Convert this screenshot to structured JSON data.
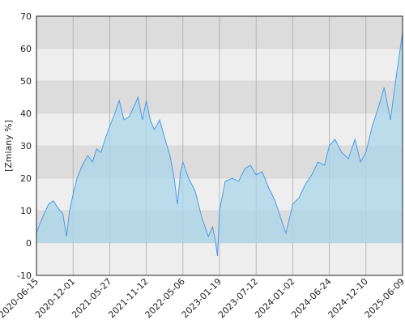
{
  "chart_data": {
    "type": "area",
    "y_label": "[Zmiany %]",
    "x": [
      "2020-06-15",
      "2020-07-01",
      "2020-07-20",
      "2020-08-10",
      "2020-09-01",
      "2020-09-20",
      "2020-10-15",
      "2020-11-01",
      "2020-11-15",
      "2020-12-01",
      "2020-12-20",
      "2021-01-15",
      "2021-02-10",
      "2021-03-05",
      "2021-03-25",
      "2021-04-15",
      "2021-05-10",
      "2021-05-27",
      "2021-06-20",
      "2021-07-10",
      "2021-08-01",
      "2021-08-25",
      "2021-09-15",
      "2021-10-05",
      "2021-10-25",
      "2021-11-12",
      "2021-12-01",
      "2021-12-20",
      "2022-01-15",
      "2022-02-10",
      "2022-03-05",
      "2022-03-25",
      "2022-04-10",
      "2022-04-25",
      "2022-05-06",
      "2022-06-15",
      "2022-08-01",
      "2022-09-15",
      "2022-11-01",
      "2022-12-01",
      "2022-12-20",
      "2023-01-05",
      "2023-01-19",
      "2023-02-15",
      "2023-03-20",
      "2023-04-20",
      "2023-05-20",
      "2023-06-15",
      "2023-07-12",
      "2023-08-10",
      "2023-09-10",
      "2023-10-10",
      "2023-11-10",
      "2023-12-01",
      "2024-01-02",
      "2024-02-01",
      "2024-03-01",
      "2024-04-01",
      "2024-05-01",
      "2024-06-01",
      "2024-06-24",
      "2024-07-20",
      "2024-08-20",
      "2024-09-20",
      "2024-10-20",
      "2024-11-15",
      "2024-12-10",
      "2025-01-10",
      "2025-02-10",
      "2025-03-10",
      "2025-04-10",
      "2025-05-10",
      "2025-06-09"
    ],
    "series": [
      {
        "name": "Zmiany",
        "color": "#4a9be8",
        "fill": "#a9d7ea",
        "values": [
          3,
          6,
          9,
          12,
          13,
          11,
          9,
          2,
          10,
          15,
          20,
          24,
          27,
          25,
          29,
          28,
          33,
          36,
          40,
          44,
          38,
          39,
          42,
          45,
          38,
          44,
          38,
          35,
          38,
          32,
          27,
          20,
          12,
          22,
          25,
          20,
          16,
          8,
          2,
          5,
          1,
          -4,
          10,
          19,
          20,
          19,
          23,
          24,
          21,
          22,
          17,
          13,
          7,
          3,
          12,
          14,
          18,
          21,
          25,
          24,
          30,
          32,
          28,
          26,
          32,
          25,
          28,
          36,
          42,
          48,
          38,
          52,
          65
        ]
      }
    ],
    "xlim": [
      "2020-06-15",
      "2025-06-09"
    ],
    "xticks": [
      "2020-06-15",
      "2020-12-01",
      "2021-05-27",
      "2021-11-12",
      "2022-05-06",
      "2023-01-19",
      "2023-07-12",
      "2024-01-02",
      "2024-06-24",
      "2024-12-10",
      "2025-06-09"
    ],
    "ylim": [
      -10,
      70
    ],
    "yticks": [
      -10,
      0,
      10,
      20,
      30,
      40,
      50,
      60,
      70
    ],
    "grid": true
  }
}
